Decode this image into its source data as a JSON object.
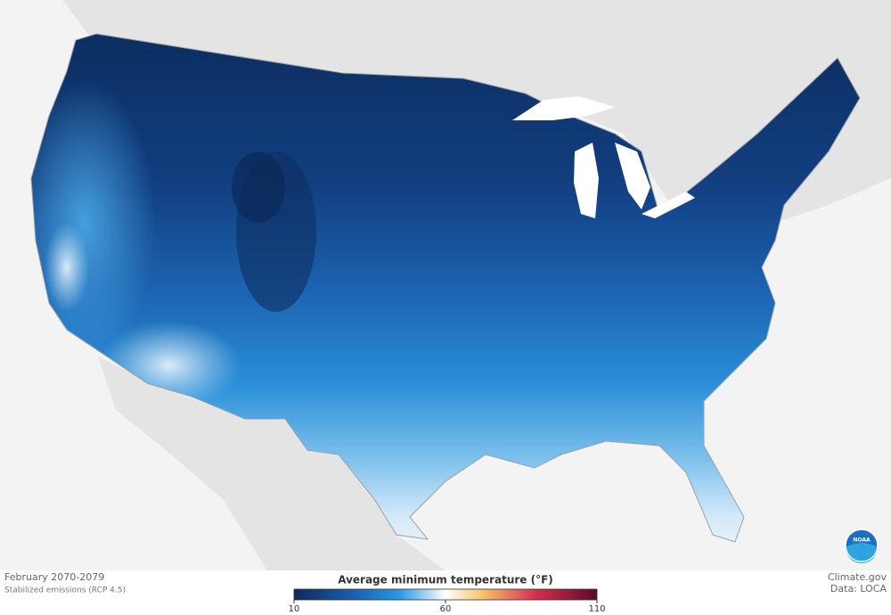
{
  "caption": {
    "period": "February 2070-2079",
    "scenario": "Stabilized emissions (RCP 4.5)"
  },
  "legend": {
    "title": "Average minimum temperature (°F)",
    "ticks": [
      10,
      60,
      110
    ]
  },
  "credits": {
    "site": "Climate.gov",
    "source": "Data: LOCA",
    "logo": "NOAA"
  }
}
